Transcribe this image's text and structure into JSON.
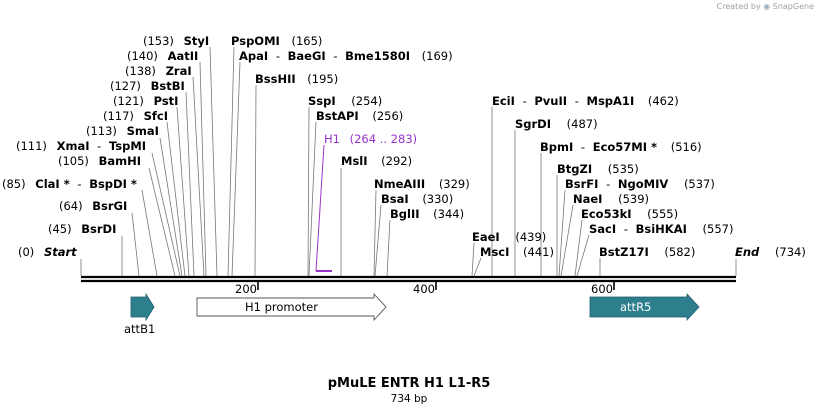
{
  "credit": {
    "prefix": "Created by",
    "brand": "SnapGene"
  },
  "plasmid": {
    "name": "pMuLE ENTR H1 L1-R5",
    "length": "734 bp"
  },
  "colors": {
    "line": "#000000",
    "feature": "#2e7f8e",
    "primer": "#9933cc",
    "promoter_fill": "#ffffff"
  },
  "ticks": [
    "200",
    "400",
    "600"
  ],
  "sites": [
    {
      "pos": "(0)",
      "name": "Start"
    },
    {
      "pos": "(45)",
      "name": "BsrDI"
    },
    {
      "pos": "(64)",
      "name": "BsrGI"
    },
    {
      "pos": "(85)",
      "name": "ClaI *",
      "name2": "BspDI *"
    },
    {
      "pos": "(105)",
      "name": "BamHI"
    },
    {
      "pos": "(111)",
      "name": "XmaI",
      "name2": "TspMI"
    },
    {
      "pos": "(113)",
      "name": "SmaI"
    },
    {
      "pos": "(117)",
      "name": "SfcI"
    },
    {
      "pos": "(121)",
      "name": "PstI"
    },
    {
      "pos": "(127)",
      "name": "BstBI"
    },
    {
      "pos": "(138)",
      "name": "ZraI"
    },
    {
      "pos": "(140)",
      "name": "AatII"
    },
    {
      "pos": "(153)",
      "name": "StyI"
    },
    {
      "pos": "(165)",
      "name": "PspOMI"
    },
    {
      "pos": "(169)",
      "name": "ApaI",
      "name2": "BaeGI",
      "name3": "Bme1580I"
    },
    {
      "pos": "(195)",
      "name": "BssHII"
    },
    {
      "pos": "(254)",
      "name": "SspI"
    },
    {
      "pos": "(256)",
      "name": "BstAPI"
    },
    {
      "pos": "(292)",
      "name": "MslI"
    },
    {
      "pos": "(329)",
      "name": "NmeAIII"
    },
    {
      "pos": "(330)",
      "name": "BsaI"
    },
    {
      "pos": "(344)",
      "name": "BglII"
    },
    {
      "pos": "(439)",
      "name": "EaeI"
    },
    {
      "pos": "(441)",
      "name": "MscI"
    },
    {
      "pos": "(462)",
      "name": "EciI",
      "name2": "PvuII",
      "name3": "MspA1I"
    },
    {
      "pos": "(487)",
      "name": "SgrDI"
    },
    {
      "pos": "(516)",
      "name": "BpmI",
      "name2": "Eco57MI *"
    },
    {
      "pos": "(535)",
      "name": "BtgZI"
    },
    {
      "pos": "(537)",
      "name": "BsrFI",
      "name2": "NgoMIV"
    },
    {
      "pos": "(539)",
      "name": "NaeI"
    },
    {
      "pos": "(555)",
      "name": "Eco53kI"
    },
    {
      "pos": "(557)",
      "name": "SacI",
      "name2": "BsiHKAI"
    },
    {
      "pos": "(582)",
      "name": "BstZ17I"
    },
    {
      "pos": "(734)",
      "name": "End"
    }
  ],
  "primer": {
    "name": "H1",
    "range": "(264 .. 283)"
  },
  "features": [
    {
      "name": "attB1"
    },
    {
      "name": "H1 promoter"
    },
    {
      "name": "attR5"
    }
  ]
}
